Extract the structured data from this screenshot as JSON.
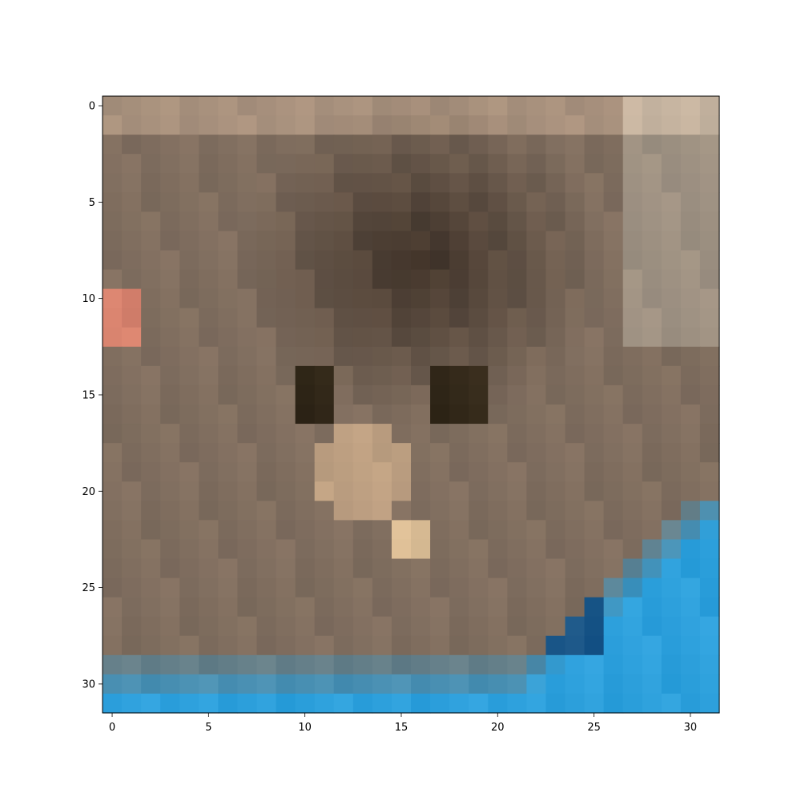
{
  "image": {
    "rows": 32,
    "cols": 32,
    "description_free": true,
    "x_ticks": [
      "0",
      "5",
      "10",
      "15",
      "20",
      "25",
      "30"
    ],
    "y_ticks": [
      "0",
      "5",
      "10",
      "15",
      "20",
      "25",
      "30"
    ],
    "palette_notes": {
      "background": "#ffffff",
      "frame": "#000000",
      "dominant_colors": [
        "#5a4a3d",
        "#8a7a6b",
        "#3aa8e0",
        "#1b5f96",
        "#c7a88c"
      ]
    }
  }
}
